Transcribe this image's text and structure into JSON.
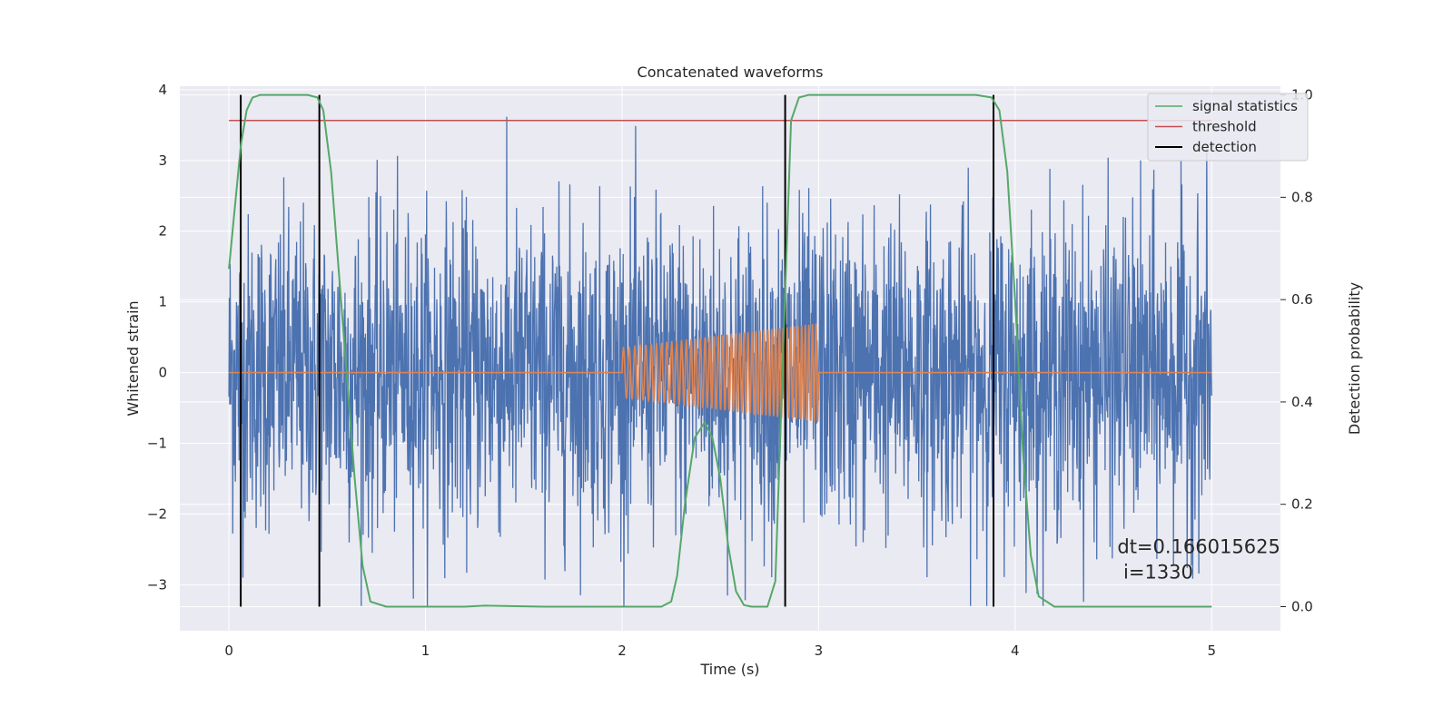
{
  "chart_data": {
    "type": "line",
    "title": "Concatenated waveforms",
    "xlabel": "Time (s)",
    "ylabel": "Whitened strain",
    "y2label": "Detection probability",
    "xlim": [
      -0.25,
      5.35
    ],
    "ylim": [
      -3.65,
      4.05
    ],
    "y2lim": [
      -0.047,
      1.017
    ],
    "xticks": [
      0,
      1,
      2,
      3,
      4,
      5
    ],
    "xtick_labels": [
      "0",
      "1",
      "2",
      "3",
      "4",
      "5"
    ],
    "yticks": [
      -3,
      -2,
      -1,
      0,
      1,
      2,
      3,
      4
    ],
    "ytick_labels": [
      "−3",
      "−2",
      "−1",
      "0",
      "1",
      "2",
      "3",
      "4"
    ],
    "y2ticks": [
      0.0,
      0.2,
      0.4,
      0.6,
      0.8,
      1.0
    ],
    "y2tick_labels": [
      "0.0",
      "0.2",
      "0.4",
      "0.6",
      "0.8",
      "1.0"
    ],
    "grid": true,
    "legend_position": "top-right",
    "series": [
      {
        "kind": "noise",
        "axis": "left",
        "color": "#4c72b0",
        "x_range": [
          0,
          5
        ],
        "typical_amplitude": 1.3,
        "max_amplitude": 3.7,
        "min_amplitude": -3.3
      },
      {
        "kind": "chirp",
        "axis": "left",
        "color": "#dd8452",
        "x_range": [
          0,
          5
        ],
        "chirp_range": [
          2,
          3
        ],
        "amplitude_start": 0.35,
        "amplitude_end": 0.7,
        "cycles": 45
      },
      {
        "name": "signal statistics",
        "axis": "right",
        "color": "#55a868",
        "x": [
          0.0,
          0.03,
          0.06,
          0.09,
          0.12,
          0.16,
          0.2,
          0.3,
          0.4,
          0.45,
          0.48,
          0.52,
          0.56,
          0.6,
          0.64,
          0.68,
          0.72,
          0.8,
          1.0,
          1.2,
          1.3,
          1.6,
          2.0,
          2.2,
          2.25,
          2.28,
          2.32,
          2.37,
          2.42,
          2.46,
          2.5,
          2.54,
          2.58,
          2.62,
          2.66,
          2.7,
          2.74,
          2.78,
          2.82,
          2.86,
          2.9,
          2.95,
          3.0,
          3.5,
          3.8,
          3.88,
          3.92,
          3.96,
          4.0,
          4.04,
          4.08,
          4.12,
          4.2,
          4.5,
          5.0
        ],
        "values": [
          0.66,
          0.78,
          0.9,
          0.97,
          0.995,
          1.0,
          1.0,
          1.0,
          1.0,
          0.995,
          0.97,
          0.85,
          0.65,
          0.45,
          0.25,
          0.08,
          0.01,
          0.0,
          0.0,
          0.0,
          0.002,
          0.0,
          0.0,
          0.0,
          0.01,
          0.06,
          0.2,
          0.33,
          0.36,
          0.33,
          0.25,
          0.12,
          0.03,
          0.003,
          0.0,
          0.0,
          0.0,
          0.05,
          0.5,
          0.95,
          0.995,
          1.0,
          1.0,
          1.0,
          1.0,
          0.995,
          0.97,
          0.85,
          0.6,
          0.3,
          0.1,
          0.02,
          0.0,
          0.0,
          0.0
        ]
      },
      {
        "name": "threshold",
        "axis": "right",
        "color": "#c44e52",
        "x": [
          0,
          5
        ],
        "values": [
          0.95,
          0.95
        ]
      }
    ],
    "detections": {
      "name": "detection",
      "color": "#000000",
      "axis": "right",
      "x": [
        0.06,
        0.46,
        2.83,
        3.89
      ],
      "y_range": [
        0.0,
        1.0
      ]
    },
    "annotation": {
      "lines": [
        "dt=0.166015625",
        " i=1330"
      ],
      "x": 4.52,
      "y": -2.55
    }
  }
}
